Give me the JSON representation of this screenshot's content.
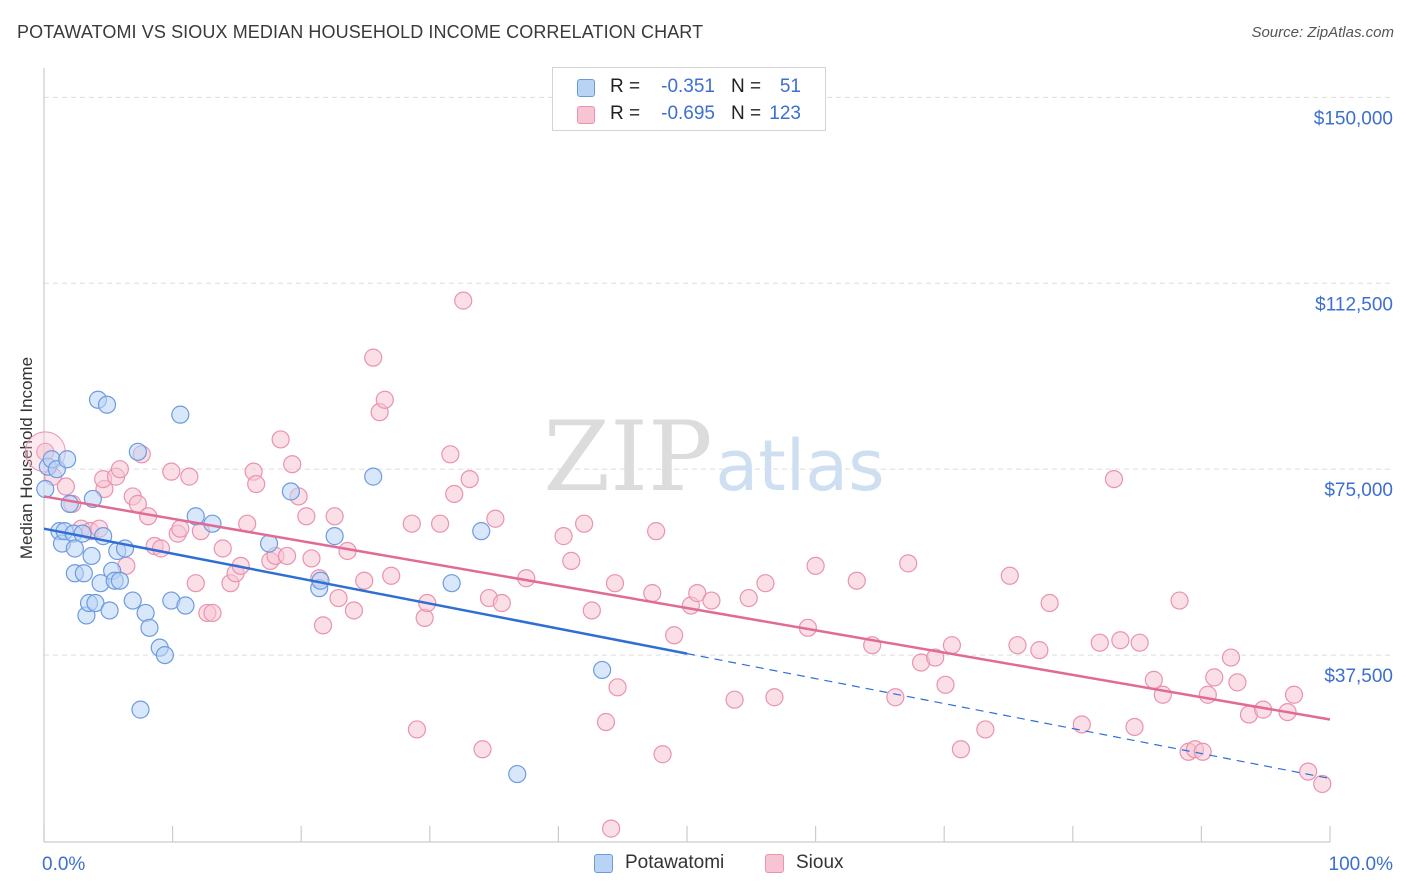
{
  "header": {
    "title": "POTAWATOMI VS SIOUX MEDIAN HOUSEHOLD INCOME CORRELATION CHART",
    "source": "Source: ZipAtlas.com"
  },
  "watermark": {
    "zip": "ZIP",
    "atlas": "atlas"
  },
  "legend": {
    "rows": [
      {
        "r_key": "R =",
        "r_value": "-0.351",
        "n_key": "N =",
        "n_value": "51",
        "color": "#b9d3f5"
      },
      {
        "r_key": "R =",
        "r_value": "-0.695",
        "n_key": "N =",
        "n_value": "123",
        "color": "#f7c4d4"
      }
    ]
  },
  "bottom_legend": [
    {
      "label": "Potawatomi",
      "color": "#b9d3f5"
    },
    {
      "label": "Sioux",
      "color": "#f7c4d4"
    }
  ],
  "colors": {
    "potawatomi_fill": "#b9d3f5",
    "potawatomi_stroke": "#6d9be0",
    "potawatomi_line": "#2f6fd4",
    "sioux_fill": "#f7c4d4",
    "sioux_stroke": "#e993b0",
    "sioux_line": "#e06b95",
    "tick_label": "#3c6fd0",
    "grid": "#dddddd"
  },
  "chart_data": {
    "type": "scatter",
    "title": "POTAWATOMI VS SIOUX MEDIAN HOUSEHOLD INCOME CORRELATION CHART",
    "xlabel": "",
    "ylabel": "Median Household Income",
    "xlim": [
      0,
      100
    ],
    "ylim": [
      0,
      150000
    ],
    "x_tick_labels": [
      "0.0%",
      "100.0%"
    ],
    "y_ticks": [
      37500,
      75000,
      112500,
      150000
    ],
    "y_tick_labels": [
      "$37,500",
      "$75,000",
      "$112,500",
      "$150,000"
    ],
    "grid": true,
    "legend_placement": "top-center",
    "series": [
      {
        "name": "Potawatomi",
        "r": -0.351,
        "n": 51,
        "trend": {
          "x": [
            0,
            50
          ],
          "y": [
            63000,
            37800
          ]
        },
        "trend_extrapolated": {
          "x": [
            50,
            100
          ],
          "y": [
            37800,
            12600
          ]
        },
        "points": [
          [
            0.3,
            75500
          ],
          [
            0.6,
            77000
          ],
          [
            1.0,
            75000
          ],
          [
            1.2,
            62500
          ],
          [
            1.4,
            60000
          ],
          [
            1.6,
            62500
          ],
          [
            1.8,
            77000
          ],
          [
            2.0,
            68000
          ],
          [
            2.3,
            62000
          ],
          [
            2.4,
            59000
          ],
          [
            2.4,
            54000
          ],
          [
            3.0,
            62000
          ],
          [
            3.1,
            54000
          ],
          [
            3.3,
            45500
          ],
          [
            3.5,
            48000
          ],
          [
            3.7,
            57500
          ],
          [
            3.8,
            69000
          ],
          [
            4.0,
            48000
          ],
          [
            4.2,
            89000
          ],
          [
            4.4,
            52000
          ],
          [
            4.6,
            61500
          ],
          [
            4.9,
            88000
          ],
          [
            5.1,
            46500
          ],
          [
            5.3,
            54500
          ],
          [
            5.5,
            52500
          ],
          [
            5.7,
            58500
          ],
          [
            5.9,
            52500
          ],
          [
            6.3,
            59000
          ],
          [
            6.9,
            48500
          ],
          [
            7.3,
            78500
          ],
          [
            7.5,
            26500
          ],
          [
            7.9,
            46000
          ],
          [
            8.2,
            43000
          ],
          [
            9.0,
            39000
          ],
          [
            9.4,
            37500
          ],
          [
            9.9,
            48500
          ],
          [
            10.6,
            86000
          ],
          [
            11.0,
            47500
          ],
          [
            11.8,
            65500
          ],
          [
            13.1,
            64000
          ],
          [
            17.5,
            60000
          ],
          [
            19.2,
            70500
          ],
          [
            21.4,
            51000
          ],
          [
            21.5,
            52500
          ],
          [
            22.6,
            61500
          ],
          [
            25.6,
            73500
          ],
          [
            31.7,
            52000
          ],
          [
            34.0,
            62500
          ],
          [
            36.8,
            13500
          ],
          [
            43.4,
            34500
          ],
          [
            0.1,
            71000
          ]
        ]
      },
      {
        "name": "Sioux",
        "r": -0.695,
        "n": 123,
        "trend": {
          "x": [
            0,
            100
          ],
          "y": [
            69500,
            24500
          ]
        },
        "points": [
          [
            0.1,
            78500
          ],
          [
            0.7,
            73500
          ],
          [
            1.7,
            71500
          ],
          [
            2.2,
            68000
          ],
          [
            2.9,
            63000
          ],
          [
            3.6,
            62500
          ],
          [
            4.3,
            63000
          ],
          [
            4.7,
            71000
          ],
          [
            4.6,
            73000
          ],
          [
            5.6,
            73500
          ],
          [
            5.9,
            75000
          ],
          [
            6.4,
            55500
          ],
          [
            6.9,
            69500
          ],
          [
            7.3,
            68000
          ],
          [
            7.6,
            78000
          ],
          [
            8.1,
            65500
          ],
          [
            8.6,
            59500
          ],
          [
            9.1,
            59000
          ],
          [
            9.9,
            74500
          ],
          [
            10.4,
            62000
          ],
          [
            10.6,
            63000
          ],
          [
            11.3,
            73500
          ],
          [
            11.8,
            52000
          ],
          [
            12.2,
            62500
          ],
          [
            12.7,
            46000
          ],
          [
            13.1,
            46000
          ],
          [
            13.9,
            59000
          ],
          [
            14.5,
            52000
          ],
          [
            14.9,
            54000
          ],
          [
            15.3,
            55500
          ],
          [
            15.8,
            64000
          ],
          [
            16.3,
            74500
          ],
          [
            16.5,
            72000
          ],
          [
            17.6,
            56500
          ],
          [
            18.0,
            57500
          ],
          [
            18.4,
            81000
          ],
          [
            18.9,
            57500
          ],
          [
            19.3,
            76000
          ],
          [
            19.8,
            69500
          ],
          [
            20.4,
            65500
          ],
          [
            20.8,
            57000
          ],
          [
            21.4,
            53000
          ],
          [
            21.7,
            43500
          ],
          [
            22.6,
            65500
          ],
          [
            22.9,
            49000
          ],
          [
            23.6,
            58500
          ],
          [
            24.1,
            46500
          ],
          [
            24.9,
            52500
          ],
          [
            25.6,
            97500
          ],
          [
            26.1,
            86500
          ],
          [
            26.5,
            89000
          ],
          [
            27.0,
            53500
          ],
          [
            28.6,
            64000
          ],
          [
            29.0,
            22500
          ],
          [
            29.6,
            45000
          ],
          [
            29.8,
            48000
          ],
          [
            30.8,
            64000
          ],
          [
            31.6,
            78000
          ],
          [
            31.9,
            70000
          ],
          [
            32.6,
            109000
          ],
          [
            33.1,
            73000
          ],
          [
            34.1,
            18500
          ],
          [
            34.6,
            49000
          ],
          [
            35.1,
            65000
          ],
          [
            35.6,
            48000
          ],
          [
            37.5,
            53000
          ],
          [
            40.4,
            61500
          ],
          [
            41.0,
            56500
          ],
          [
            42.0,
            64000
          ],
          [
            42.6,
            46500
          ],
          [
            43.7,
            24000
          ],
          [
            44.1,
            2500
          ],
          [
            44.6,
            31000
          ],
          [
            44.4,
            52000
          ],
          [
            47.3,
            50000
          ],
          [
            47.6,
            62500
          ],
          [
            48.1,
            17500
          ],
          [
            49.0,
            41500
          ],
          [
            50.3,
            47500
          ],
          [
            50.8,
            50000
          ],
          [
            51.9,
            48500
          ],
          [
            53.7,
            28500
          ],
          [
            54.8,
            49000
          ],
          [
            56.1,
            52000
          ],
          [
            56.8,
            29000
          ],
          [
            59.4,
            43000
          ],
          [
            60.0,
            55500
          ],
          [
            63.2,
            52500
          ],
          [
            64.4,
            39500
          ],
          [
            66.2,
            29000
          ],
          [
            67.2,
            56000
          ],
          [
            68.2,
            36000
          ],
          [
            69.3,
            37000
          ],
          [
            70.1,
            31500
          ],
          [
            70.6,
            39500
          ],
          [
            71.3,
            18500
          ],
          [
            73.2,
            22500
          ],
          [
            75.1,
            53500
          ],
          [
            75.7,
            39500
          ],
          [
            77.4,
            38500
          ],
          [
            78.2,
            48000
          ],
          [
            80.7,
            23500
          ],
          [
            82.1,
            40000
          ],
          [
            83.2,
            73000
          ],
          [
            83.7,
            40500
          ],
          [
            84.8,
            23000
          ],
          [
            85.2,
            40000
          ],
          [
            86.3,
            32500
          ],
          [
            87.0,
            29500
          ],
          [
            88.3,
            48500
          ],
          [
            89.0,
            18000
          ],
          [
            89.5,
            18500
          ],
          [
            90.1,
            18000
          ],
          [
            90.5,
            29500
          ],
          [
            91.0,
            33000
          ],
          [
            92.3,
            37000
          ],
          [
            92.8,
            32000
          ],
          [
            93.7,
            25500
          ],
          [
            94.8,
            26500
          ],
          [
            96.7,
            26000
          ],
          [
            97.2,
            29500
          ],
          [
            98.3,
            14000
          ],
          [
            99.4,
            11500
          ]
        ]
      }
    ]
  }
}
